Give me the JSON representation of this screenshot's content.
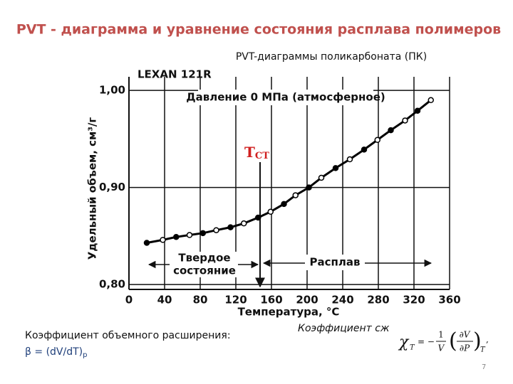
{
  "title": "PVT  - диаграмма и уравнение состояния расплава полимеров",
  "subtitle": "PVT-диаграммы поликарбоната (ПК)",
  "expansion": {
    "label": "Коэффициент  объемного расширения:",
    "beta": "β =  (dV/dT)",
    "beta_sub": "p"
  },
  "compress": {
    "label": "Коэффициент сж",
    "symbol": "χ",
    "symbol_sub": "T",
    "eq": "= −",
    "num": "1",
    "den": "V",
    "open": "(",
    "d_num": "∂V",
    "d_den": "∂P",
    "close": ")",
    "sub": "T",
    "end": ","
  },
  "page_number": "7",
  "chart_data": {
    "type": "line",
    "annotations": {
      "material": "LEXAN 121R",
      "pressure": "Давление 0 МПа (атмосферное)",
      "tg": "Т",
      "tg_sub": "СТ",
      "solid_1": "Твердое",
      "solid_2": "состояние",
      "melt": "Расплав"
    },
    "x_label": "Температура, °С",
    "y_label": "Удельный объем, см³/г",
    "x": [
      20,
      38,
      53,
      68,
      83,
      98,
      114,
      129,
      145,
      159,
      174,
      187,
      202,
      216,
      232,
      248,
      264,
      279,
      294,
      310,
      324,
      339
    ],
    "series": [
      {
        "color": "#000000",
        "values": [
          0.843,
          0.846,
          0.849,
          0.851,
          0.853,
          0.856,
          0.859,
          0.863,
          0.869,
          0.875,
          0.883,
          0.892,
          0.9,
          0.91,
          0.92,
          0.929,
          0.939,
          0.949,
          0.959,
          0.969,
          0.979,
          0.99
        ]
      }
    ],
    "xlim": [
      0,
      360
    ],
    "xticks": [
      0,
      40,
      80,
      120,
      160,
      200,
      240,
      280,
      320,
      360
    ],
    "ylim": [
      0.795,
      1.014
    ],
    "yticks": [
      {
        "value": 0.8,
        "label": "0,80"
      },
      {
        "value": 0.9,
        "label": "0,90"
      },
      {
        "value": 1.0,
        "label": "1,00"
      }
    ],
    "grid": true
  }
}
